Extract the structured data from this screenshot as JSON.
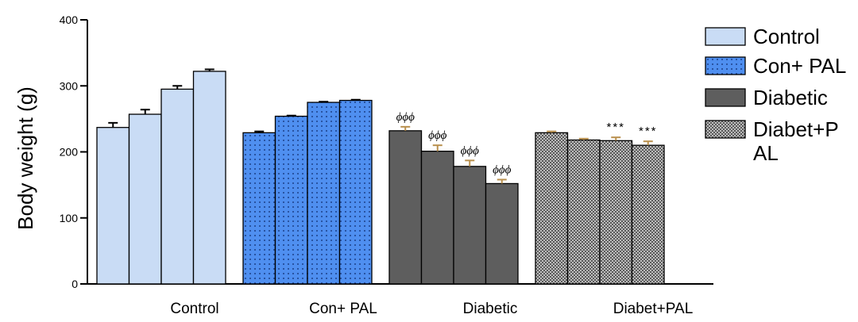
{
  "chart_data": {
    "type": "bar",
    "ylabel": "Body weight (g)",
    "ylim": [
      0,
      400
    ],
    "yticks": [
      0,
      100,
      200,
      300,
      400
    ],
    "categories": [
      "Control",
      "Con+ PAL",
      "Diabetic",
      "Diabet+PAL"
    ],
    "series": [
      {
        "name": "Control",
        "values": [
          237,
          257,
          295,
          322
        ],
        "errors": [
          7,
          7,
          5,
          3
        ],
        "fill": "#c9dcf5",
        "errorColor": "#000000"
      },
      {
        "name": "Con+ PAL",
        "values": [
          229,
          254,
          275,
          278
        ],
        "errors": [
          2,
          1,
          1,
          1
        ],
        "fill": "#4f8ff0",
        "errorColor": "#000000"
      },
      {
        "name": "Diabetic",
        "values": [
          232,
          201,
          178,
          152
        ],
        "errors": [
          6,
          9,
          9,
          6
        ],
        "fill": "#5e5e5e",
        "errorColor": "#b9904e"
      },
      {
        "name": "Diabet+PAL",
        "values": [
          229,
          218,
          217,
          210
        ],
        "errors": [
          2,
          2,
          5,
          6
        ],
        "fill": "#a9a9a9",
        "errorColor": "#b9904e"
      }
    ],
    "annotations": [
      {
        "series": 2,
        "bar": 0,
        "text": "ϕϕϕ"
      },
      {
        "series": 2,
        "bar": 1,
        "text": "ϕϕϕ"
      },
      {
        "series": 2,
        "bar": 2,
        "text": "ϕϕϕ"
      },
      {
        "series": 2,
        "bar": 3,
        "text": "ϕϕϕ"
      },
      {
        "series": 3,
        "bar": 2,
        "text": "***"
      },
      {
        "series": 3,
        "bar": 3,
        "text": "***"
      }
    ],
    "legend": {
      "placement": "top-right",
      "entries": [
        "Control",
        "Con+ PAL",
        "Diabetic",
        "Diabet+P\nAL"
      ]
    },
    "grid": false
  }
}
